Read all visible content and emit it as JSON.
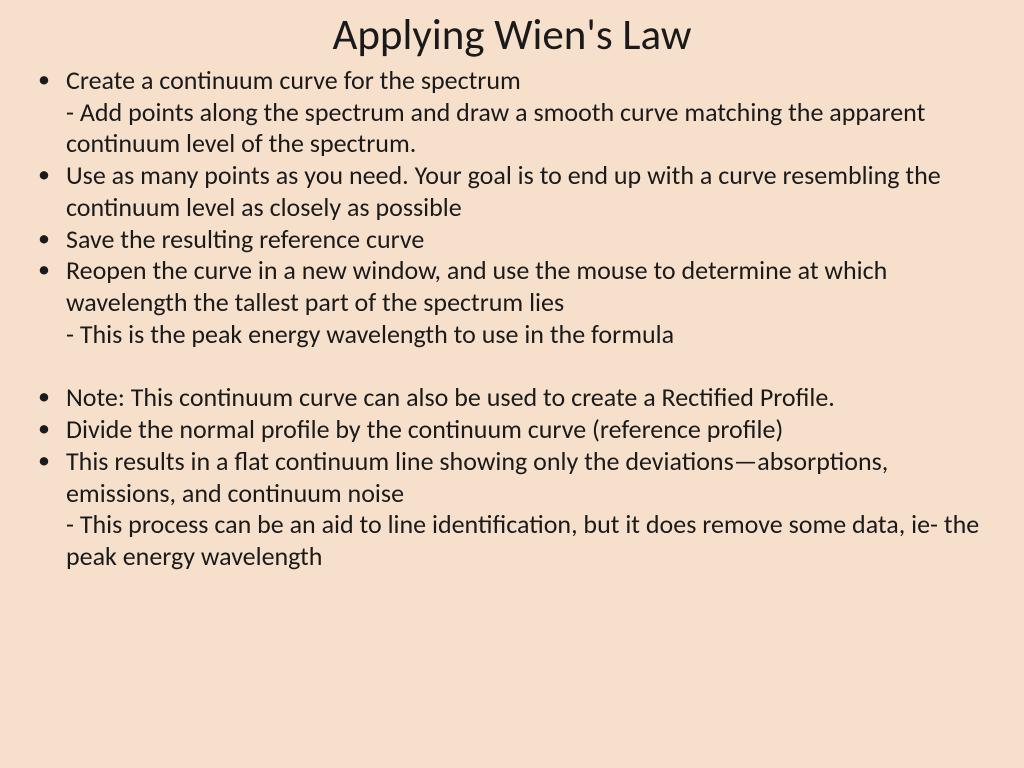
{
  "background_color": "#f7e0cb",
  "text_color": "#1a1a1a",
  "font_family": "Calibri",
  "title": "Applying Wien's Law",
  "title_fontsize": 43,
  "body_fontsize": 26,
  "bullets": [
    {
      "text": "Create a continuum curve for the spectrum",
      "sublines": [
        "- Add points along the spectrum and draw a smooth curve matching the apparent continuum level of the spectrum."
      ]
    },
    {
      "text": "Use as many points as you need. Your goal is to end up with a curve resembling the continuum level as closely as possible"
    },
    {
      "text": "Save the resulting reference curve"
    },
    {
      "text": "Reopen the curve in a new window, and use the mouse to determine at which wavelength the tallest part of the spectrum lies",
      "sublines": [
        "- This is the peak energy wavelength to use in the formula"
      ]
    },
    {
      "text": "Note: This continuum curve can also be used to create a Rectified Profile.",
      "gap_before": true
    },
    {
      "text": "Divide the normal profile by the continuum curve (reference profile)"
    },
    {
      "text": "This results in a flat continuum line showing only the deviations—absorptions, emissions, and continuum noise",
      "sublines": [
        "- This process can be an aid to line identification, but it does remove some data, ie- the peak energy wavelength"
      ]
    }
  ]
}
